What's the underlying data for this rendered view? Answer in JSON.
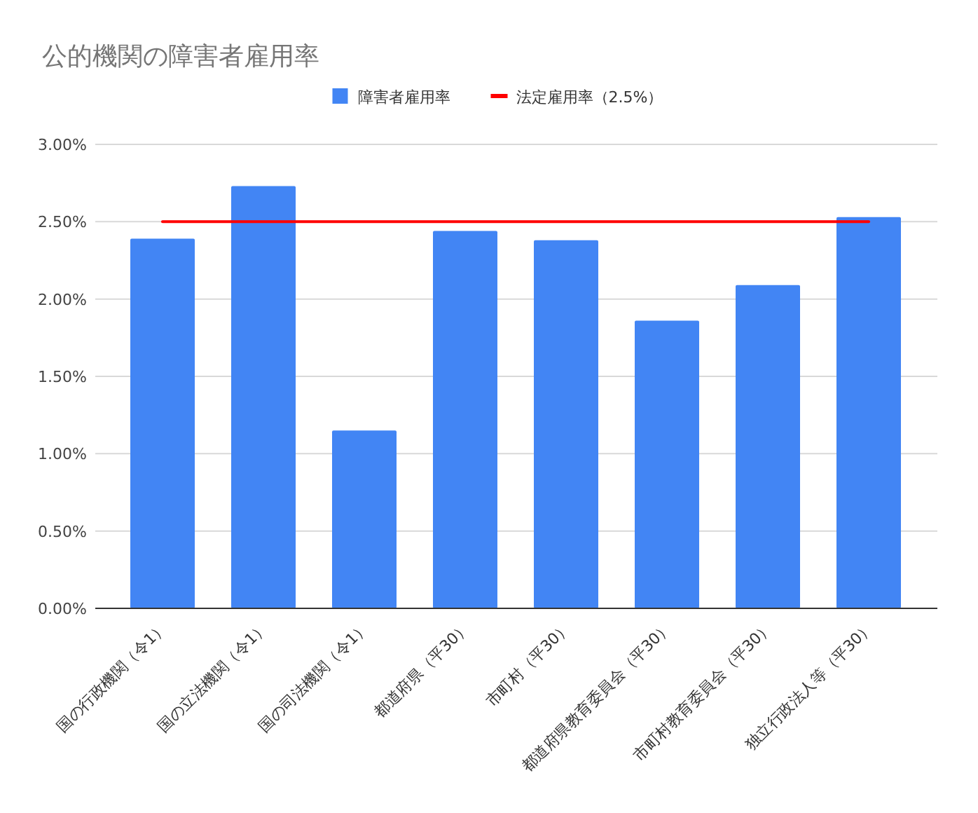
{
  "chart_data": {
    "type": "bar",
    "title": "公的機関の障害者雇用率",
    "categories": [
      "国の行政機関（令1）",
      "国の立法機関（令1）",
      "国の司法機関（令1）",
      "都道府県（平30）",
      "市町村（平30）",
      "都道府県教育委員会（平30）",
      "市町村教育委員会（平30）",
      "独立行政法人等（平30）"
    ],
    "series": [
      {
        "name": "障害者雇用率",
        "color": "#4285f4",
        "values": [
          2.39,
          2.73,
          1.15,
          2.44,
          2.38,
          1.86,
          2.09,
          2.53
        ]
      },
      {
        "name": "法定雇用率（2.5%）",
        "type": "line",
        "color": "#ff0000",
        "values": [
          2.5,
          2.5,
          2.5,
          2.5,
          2.5,
          2.5,
          2.5,
          2.5
        ]
      }
    ],
    "ylim": [
      0,
      3
    ],
    "yticks": [
      {
        "value": 0,
        "label": "0.00%"
      },
      {
        "value": 0.5,
        "label": "0.50%"
      },
      {
        "value": 1,
        "label": "1.00%"
      },
      {
        "value": 1.5,
        "label": "1.50%"
      },
      {
        "value": 2,
        "label": "2.00%"
      },
      {
        "value": 2.5,
        "label": "2.50%"
      },
      {
        "value": 3,
        "label": "3.00%"
      }
    ],
    "grid": "y",
    "legend": "top",
    "marker": "none",
    "line_style": "solid"
  }
}
